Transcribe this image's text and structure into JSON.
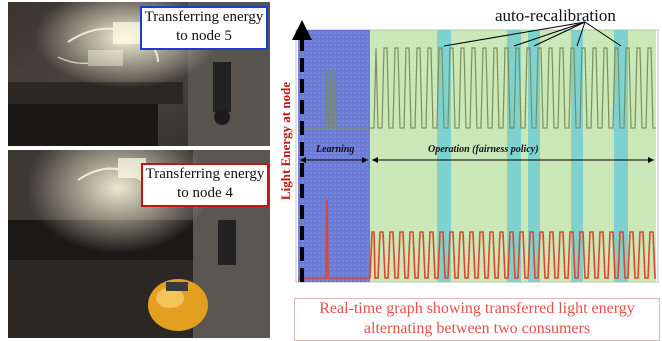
{
  "figure": {
    "top_callout": "Transferring energy to node 5",
    "bottom_callout": "Transferring energy to node 4",
    "annotation": "auto-recalibration",
    "ylabel": "Light Energy at node",
    "phase_learning": "Learning",
    "phase_operation": "Operation (fairness policy)",
    "caption_line1": "Real-time graph showing transferred light energy",
    "caption_line2": "alternating between two consumers"
  },
  "colors": {
    "learning_band": "#3a4fc8",
    "operation_band": "#9fd37a",
    "recalibration_band": "#5cc8d8",
    "node5_trace": "#7b8f5a",
    "node4_trace": "#e0452a",
    "accent_red": "#c41414",
    "accent_blue": "#1a3fd0"
  }
}
